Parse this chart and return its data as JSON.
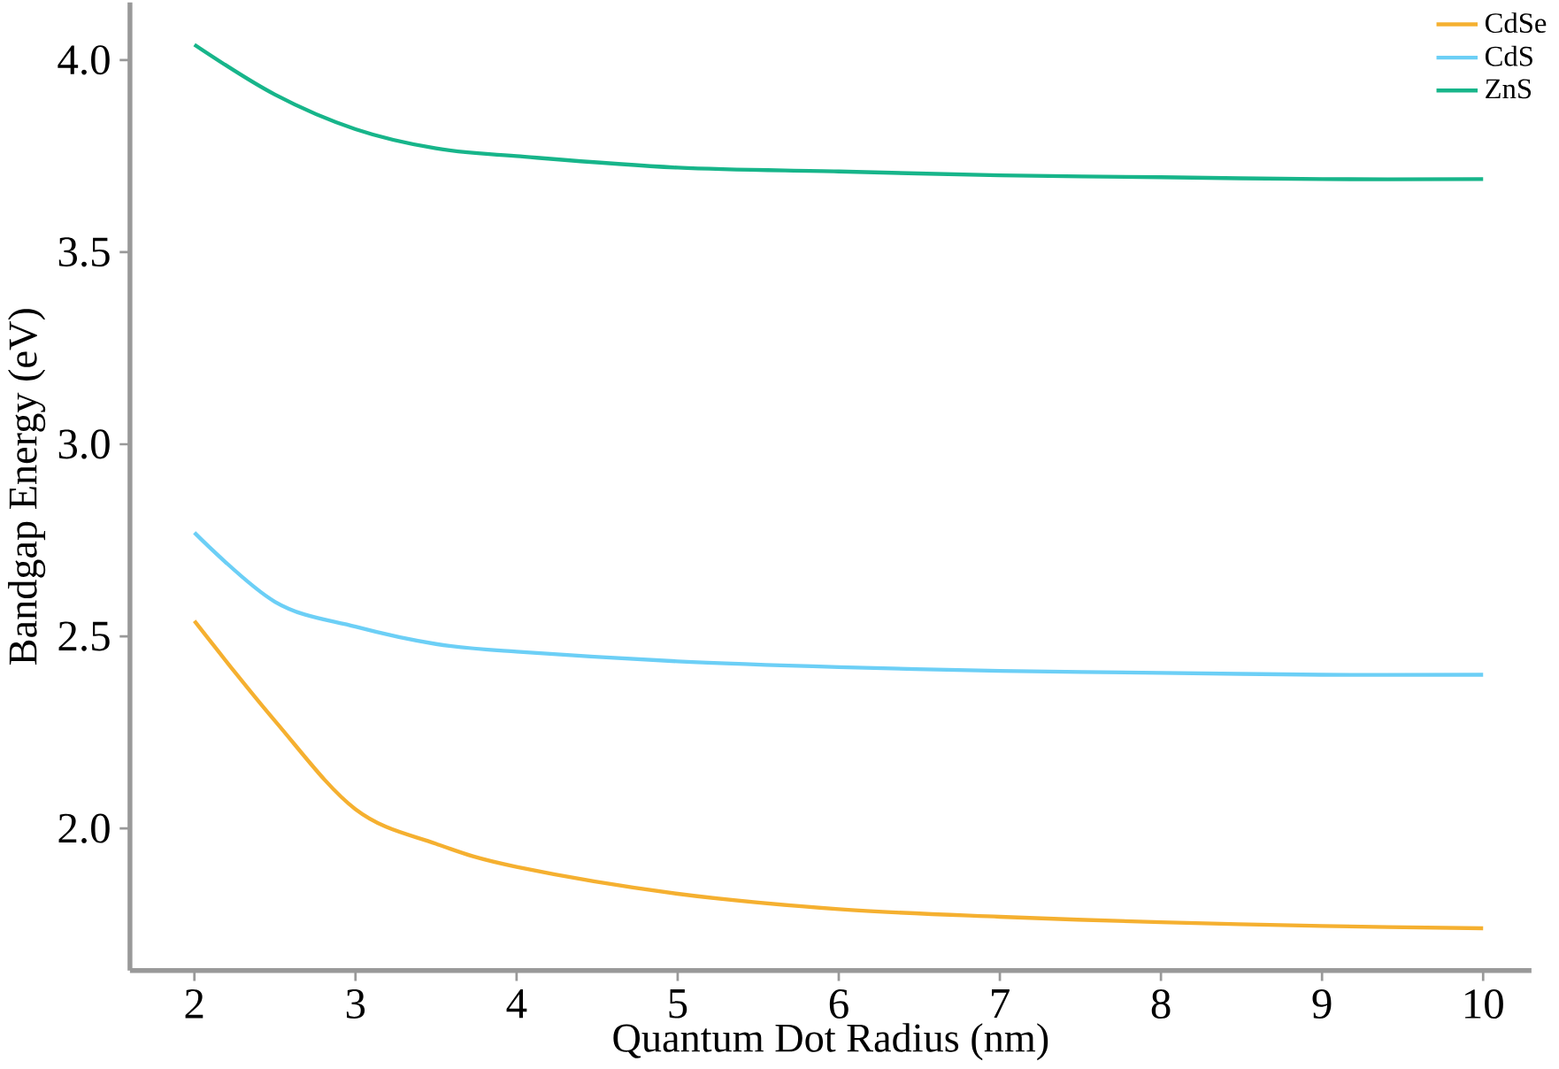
{
  "chart_data": {
    "type": "line",
    "xlabel": "Quantum Dot Radius (nm)",
    "ylabel": "Bandgap Energy (eV)",
    "x": [
      2,
      2.5,
      3,
      3.5,
      4,
      5,
      6,
      7,
      8,
      9,
      10
    ],
    "series": [
      {
        "name": "CdSe",
        "color": "#f5b030",
        "values": [
          2.54,
          2.28,
          2.05,
          1.96,
          1.9,
          1.83,
          1.79,
          1.77,
          1.756,
          1.746,
          1.74
        ]
      },
      {
        "name": "CdS",
        "color": "#6ccff6",
        "values": [
          2.77,
          2.59,
          2.525,
          2.48,
          2.46,
          2.435,
          2.42,
          2.41,
          2.405,
          2.4,
          2.4
        ]
      },
      {
        "name": "ZnS",
        "color": "#17b58a",
        "values": [
          4.04,
          3.91,
          3.82,
          3.77,
          3.75,
          3.72,
          3.71,
          3.7,
          3.695,
          3.69,
          3.69
        ]
      }
    ],
    "xlim": [
      1.6,
      10.3
    ],
    "ylim": [
      1.63,
      4.15
    ],
    "xticks": [
      2,
      3,
      4,
      5,
      6,
      7,
      8,
      9,
      10
    ],
    "yticks": [
      {
        "value": 2,
        "label": "2.0"
      },
      2.5,
      {
        "value": 3,
        "label": "3.0"
      },
      3.5,
      {
        "value": 4,
        "label": "4.0"
      }
    ],
    "grid": false,
    "legend": "top right",
    "marker": "none",
    "line_style": "solid"
  }
}
